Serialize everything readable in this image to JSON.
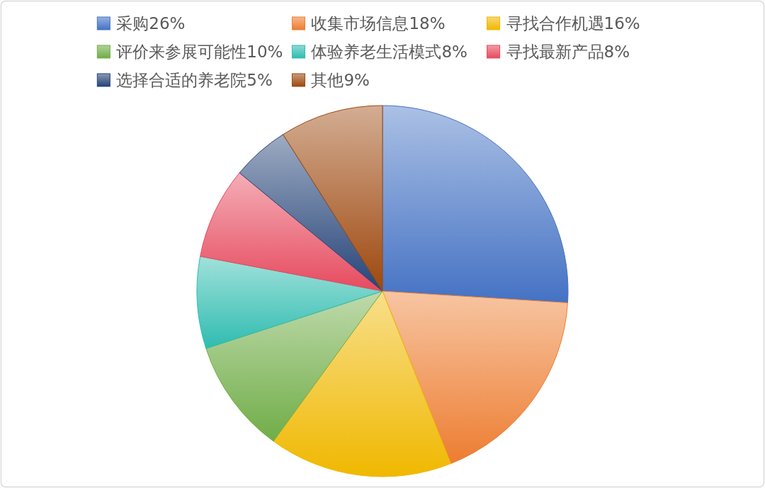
{
  "chart_data": {
    "type": "pie",
    "categories": [
      "采购26%",
      "收集市场信息18%",
      "寻找合作机遇16%",
      "评价来参展可能性10%",
      "体验养老生活模式8%",
      "寻找最新产品8%",
      "选择合适的养老院5%",
      "其他9%"
    ],
    "values": [
      26,
      18,
      16,
      10,
      8,
      8,
      5,
      9
    ],
    "colors": [
      "#4472c4",
      "#ed7d31",
      "#f0b800",
      "#70ad47",
      "#2fbcb0",
      "#e64a5e",
      "#264478",
      "#9e480e"
    ],
    "legend": "top"
  }
}
